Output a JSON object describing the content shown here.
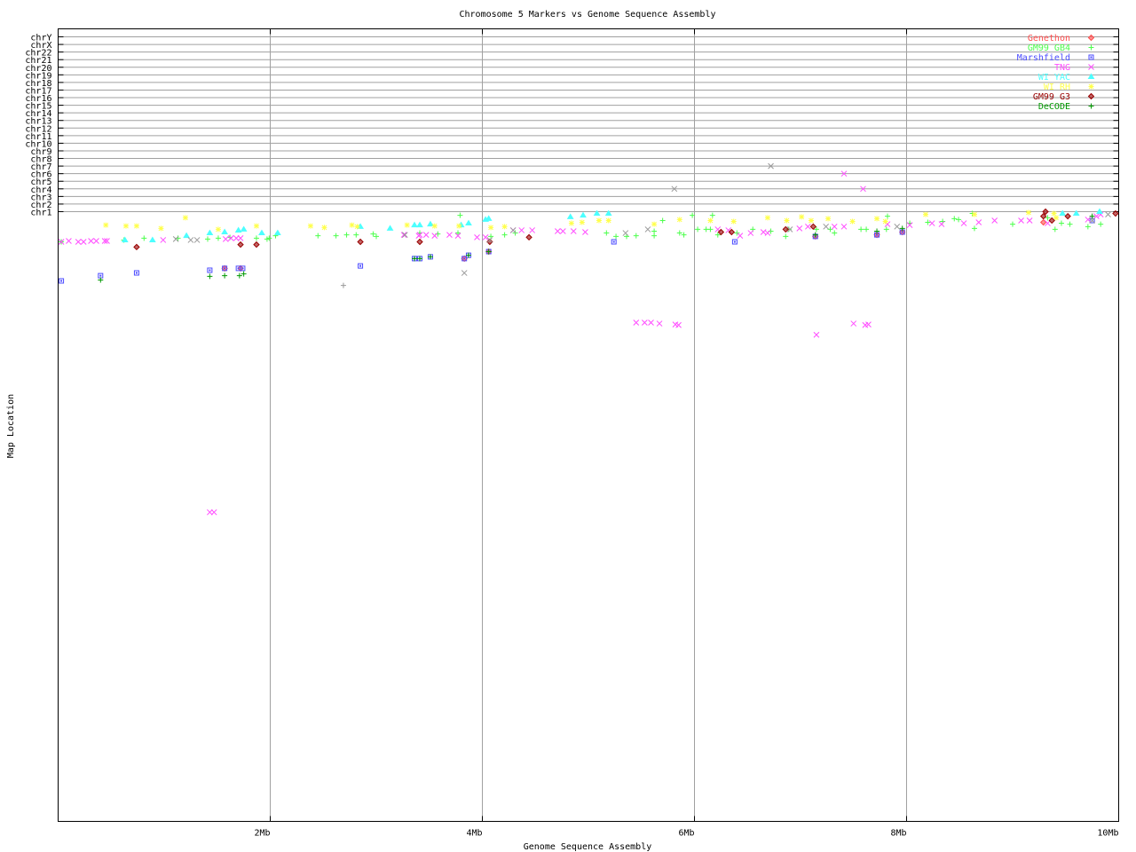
{
  "chart_data": {
    "type": "scatter",
    "title": "Chromosome 5 Markers vs Genome Sequence Assembly",
    "xlabel": "Genome Sequence Assembly",
    "ylabel": "Map Location",
    "xlim": [
      0,
      10
    ],
    "x_unit": "Mb",
    "x_ticks": [
      {
        "value": 2,
        "label": "2Mb"
      },
      {
        "value": 4,
        "label": "4Mb"
      },
      {
        "value": 6,
        "label": "6Mb"
      },
      {
        "value": 8,
        "label": "8Mb"
      },
      {
        "value": 10,
        "label": "10Mb"
      }
    ],
    "y_chromosome_labels": [
      "chrY",
      "chrX",
      "chr22",
      "chr21",
      "chr20",
      "chr19",
      "chr18",
      "chr17",
      "chr16",
      "chr15",
      "chr14",
      "chr13",
      "chr12",
      "chr11",
      "chr10",
      "chr9",
      "chr8",
      "chr7",
      "chr6",
      "chr5",
      "chr4",
      "chr3",
      "chr2",
      "chr1"
    ],
    "ylim_map_location": [
      0,
      200
    ],
    "grid": true,
    "legend_placement": "top-right",
    "series": [
      {
        "name": "Genethon",
        "color": "#ff4c4c",
        "marker": "diamond",
        "points": [
          [
            1.57,
            18.6
          ],
          [
            1.72,
            18.6
          ],
          [
            3.83,
            15.4
          ],
          [
            4.06,
            13.1
          ],
          [
            7.14,
            8.1
          ],
          [
            7.72,
            7.6
          ],
          [
            7.96,
            6.7
          ],
          [
            9.29,
            3.5
          ]
        ]
      },
      {
        "name": "GM99 GB4",
        "color": "#4cff4c",
        "marker": "plus",
        "points": [
          [
            0.03,
            9.9
          ],
          [
            0.62,
            9.3
          ],
          [
            0.81,
            8.7
          ],
          [
            1.13,
            8.7
          ],
          [
            1.41,
            9.0
          ],
          [
            1.51,
            8.7
          ],
          [
            1.62,
            8.4
          ],
          [
            1.87,
            8.7
          ],
          [
            1.97,
            9.0
          ],
          [
            1.99,
            8.7
          ],
          [
            2.05,
            7.9
          ],
          [
            2.45,
            7.9
          ],
          [
            2.62,
            7.9
          ],
          [
            2.72,
            7.6
          ],
          [
            2.81,
            7.6
          ],
          [
            2.97,
            7.3
          ],
          [
            3.0,
            8.1
          ],
          [
            3.41,
            7.0
          ],
          [
            3.58,
            7.3
          ],
          [
            3.77,
            7.0
          ],
          [
            3.79,
            1.2
          ],
          [
            4.08,
            8.1
          ],
          [
            4.21,
            7.6
          ],
          [
            4.31,
            7.0
          ],
          [
            5.17,
            7.0
          ],
          [
            5.26,
            8.1
          ],
          [
            5.36,
            8.1
          ],
          [
            5.45,
            7.9
          ],
          [
            5.62,
            6.4
          ],
          [
            5.62,
            7.9
          ],
          [
            5.7,
            2.9
          ],
          [
            5.86,
            7.0
          ],
          [
            5.9,
            7.6
          ],
          [
            5.98,
            1.2
          ],
          [
            6.03,
            5.8
          ],
          [
            6.11,
            5.8
          ],
          [
            6.15,
            5.8
          ],
          [
            6.17,
            1.2
          ],
          [
            6.22,
            7.6
          ],
          [
            6.4,
            7.0
          ],
          [
            6.55,
            5.8
          ],
          [
            6.72,
            6.4
          ],
          [
            6.86,
            8.1
          ],
          [
            6.89,
            5.8
          ],
          [
            7.15,
            5.8
          ],
          [
            7.28,
            5.8
          ],
          [
            7.32,
            7.0
          ],
          [
            7.57,
            5.8
          ],
          [
            7.62,
            5.8
          ],
          [
            7.81,
            5.8
          ],
          [
            7.82,
            1.5
          ],
          [
            8.03,
            3.8
          ],
          [
            8.2,
            3.5
          ],
          [
            8.34,
            3.2
          ],
          [
            8.45,
            2.3
          ],
          [
            8.49,
            2.6
          ],
          [
            8.64,
            5.5
          ],
          [
            8.62,
            0.6
          ],
          [
            9.0,
            4.1
          ],
          [
            9.33,
            2.0
          ],
          [
            9.4,
            5.8
          ],
          [
            9.46,
            3.8
          ],
          [
            9.54,
            4.1
          ],
          [
            9.71,
            4.9
          ],
          [
            9.83,
            4.1
          ]
        ]
      },
      {
        "name": "Marshfield",
        "color": "#4c4cff",
        "marker": "box",
        "points": [
          [
            0.03,
            22.7
          ],
          [
            0.4,
            21.0
          ],
          [
            0.74,
            20.1
          ],
          [
            1.43,
            19.2
          ],
          [
            1.57,
            18.6
          ],
          [
            1.7,
            18.6
          ],
          [
            1.74,
            18.6
          ],
          [
            2.85,
            17.8
          ],
          [
            3.36,
            15.4
          ],
          [
            3.41,
            15.4
          ],
          [
            3.51,
            14.8
          ],
          [
            3.83,
            15.4
          ],
          [
            3.87,
            14.3
          ],
          [
            4.06,
            13.1
          ],
          [
            5.24,
            9.9
          ],
          [
            6.38,
            9.9
          ],
          [
            7.14,
            8.1
          ],
          [
            7.72,
            7.6
          ],
          [
            7.96,
            6.7
          ],
          [
            9.75,
            2.9
          ]
        ]
      },
      {
        "name": "TNG",
        "color": "#ff4cff",
        "marker": "x",
        "points": [
          [
            0.03,
            9.9
          ],
          [
            0.1,
            9.6
          ],
          [
            0.19,
            9.9
          ],
          [
            0.24,
            9.9
          ],
          [
            0.31,
            9.6
          ],
          [
            0.36,
            9.6
          ],
          [
            0.44,
            9.6
          ],
          [
            0.46,
            9.6
          ],
          [
            0.99,
            9.3
          ],
          [
            1.58,
            9.0
          ],
          [
            1.63,
            8.7
          ],
          [
            1.68,
            8.7
          ],
          [
            1.72,
            8.7
          ],
          [
            3.26,
            7.6
          ],
          [
            3.4,
            7.9
          ],
          [
            3.41,
            7.6
          ],
          [
            3.47,
            7.6
          ],
          [
            3.55,
            7.9
          ],
          [
            3.69,
            7.6
          ],
          [
            3.77,
            7.9
          ],
          [
            3.95,
            8.4
          ],
          [
            4.03,
            8.4
          ],
          [
            4.29,
            6.1
          ],
          [
            4.37,
            6.1
          ],
          [
            4.47,
            6.1
          ],
          [
            4.71,
            6.4
          ],
          [
            4.76,
            6.4
          ],
          [
            4.86,
            6.4
          ],
          [
            4.97,
            6.7
          ],
          [
            5.45,
            36.4
          ],
          [
            5.53,
            36.4
          ],
          [
            5.59,
            36.4
          ],
          [
            5.67,
            36.7
          ],
          [
            5.82,
            37.0
          ],
          [
            5.85,
            37.2
          ],
          [
            6.22,
            5.8
          ],
          [
            6.32,
            6.1
          ],
          [
            6.43,
            7.9
          ],
          [
            6.53,
            7.0
          ],
          [
            6.65,
            6.7
          ],
          [
            6.69,
            7.0
          ],
          [
            6.99,
            5.5
          ],
          [
            7.07,
            4.9
          ],
          [
            7.32,
            4.9
          ],
          [
            7.41,
            4.9
          ],
          [
            7.82,
            4.1
          ],
          [
            8.03,
            4.4
          ],
          [
            8.24,
            3.8
          ],
          [
            8.33,
            4.1
          ],
          [
            8.54,
            3.8
          ],
          [
            8.68,
            3.5
          ],
          [
            8.83,
            2.9
          ],
          [
            9.08,
            2.9
          ],
          [
            9.16,
            2.9
          ],
          [
            9.33,
            3.8
          ],
          [
            9.71,
            2.6
          ],
          [
            9.79,
            1.5
          ],
          [
            9.83,
            0.9
          ],
          [
            7.15,
            40.4
          ],
          [
            7.5,
            36.7
          ],
          [
            7.61,
            37.2
          ],
          [
            7.64,
            37.0
          ],
          [
            1.43,
            98.6
          ],
          [
            1.47,
            98.6
          ],
          [
            7.41,
            "chr6"
          ],
          [
            7.59,
            "chr4"
          ]
        ]
      },
      {
        "name": "WI YAC",
        "color": "#4cffff",
        "marker": "triangle",
        "points": [
          [
            0.63,
            9.3
          ],
          [
            0.89,
            9.3
          ],
          [
            1.21,
            7.9
          ],
          [
            1.43,
            7.0
          ],
          [
            1.57,
            6.7
          ],
          [
            1.7,
            6.1
          ],
          [
            1.75,
            5.8
          ],
          [
            1.92,
            7.0
          ],
          [
            2.07,
            7.0
          ],
          [
            2.85,
            4.9
          ],
          [
            3.13,
            5.5
          ],
          [
            3.36,
            4.4
          ],
          [
            3.41,
            4.4
          ],
          [
            3.51,
            4.1
          ],
          [
            3.8,
            4.4
          ],
          [
            3.87,
            3.8
          ],
          [
            4.03,
            2.6
          ],
          [
            4.06,
            2.3
          ],
          [
            4.83,
            1.7
          ],
          [
            4.95,
            1.2
          ],
          [
            5.08,
            0.6
          ],
          [
            5.19,
            0.6
          ],
          [
            9.47,
            0.6
          ],
          [
            9.6,
            0.6
          ],
          [
            9.82,
            0
          ]
        ]
      },
      {
        "name": "WI RH",
        "color": "#ffff4c",
        "marker": "star",
        "points": [
          [
            0.45,
            4.4
          ],
          [
            0.64,
            4.7
          ],
          [
            0.74,
            4.7
          ],
          [
            0.97,
            5.5
          ],
          [
            1.2,
            2.0
          ],
          [
            1.51,
            5.8
          ],
          [
            1.87,
            4.7
          ],
          [
            2.38,
            4.7
          ],
          [
            2.51,
            5.2
          ],
          [
            2.77,
            4.4
          ],
          [
            2.82,
            4.9
          ],
          [
            3.29,
            4.4
          ],
          [
            3.55,
            4.7
          ],
          [
            3.78,
            4.7
          ],
          [
            4.08,
            5.2
          ],
          [
            4.21,
            4.9
          ],
          [
            4.84,
            3.8
          ],
          [
            4.94,
            3.5
          ],
          [
            5.1,
            2.9
          ],
          [
            5.19,
            2.9
          ],
          [
            5.62,
            4.1
          ],
          [
            5.86,
            2.6
          ],
          [
            6.15,
            2.9
          ],
          [
            6.37,
            3.2
          ],
          [
            6.69,
            2.0
          ],
          [
            6.87,
            2.9
          ],
          [
            7.01,
            1.7
          ],
          [
            7.1,
            2.9
          ],
          [
            7.26,
            2.3
          ],
          [
            7.49,
            3.2
          ],
          [
            7.72,
            2.3
          ],
          [
            7.8,
            3.2
          ],
          [
            8.18,
            0.9
          ],
          [
            8.64,
            0.9
          ],
          [
            9.15,
            0.3
          ],
          [
            9.39,
            0.6
          ],
          [
            9.41,
            2.0
          ]
        ]
      },
      {
        "name": "GM99 G3",
        "color": "#990000",
        "marker": "diamond",
        "points": [
          [
            0.74,
            11.6
          ],
          [
            1.72,
            10.8
          ],
          [
            1.87,
            10.8
          ],
          [
            2.85,
            9.9
          ],
          [
            3.41,
            9.9
          ],
          [
            4.07,
            9.9
          ],
          [
            4.44,
            8.4
          ],
          [
            6.25,
            6.7
          ],
          [
            6.35,
            6.7
          ],
          [
            6.86,
            5.8
          ],
          [
            7.12,
            4.9
          ],
          [
            9.37,
            2.9
          ],
          [
            9.52,
            1.5
          ],
          [
            9.29,
            1.5
          ],
          [
            9.31,
            0
          ],
          [
            9.97,
            0.6
          ]
        ]
      },
      {
        "name": "DeCODE",
        "color": "#009900",
        "marker": "plus",
        "points": [
          [
            0.4,
            22.4
          ],
          [
            1.43,
            21.2
          ],
          [
            1.57,
            21.0
          ],
          [
            1.71,
            21.0
          ],
          [
            1.75,
            20.4
          ],
          [
            3.36,
            15.4
          ],
          [
            3.41,
            15.4
          ],
          [
            3.51,
            14.8
          ],
          [
            3.87,
            14.3
          ],
          [
            4.06,
            13.1
          ],
          [
            7.14,
            7.6
          ],
          [
            7.72,
            6.4
          ],
          [
            7.96,
            5.5
          ],
          [
            9.75,
            1.5
          ]
        ]
      },
      {
        "color": "#999999",
        "marker": "x",
        "points": [
          [
            1.11,
            9.0
          ],
          [
            1.25,
            9.3
          ],
          [
            1.31,
            9.3
          ],
          [
            3.27,
            7.6
          ],
          [
            4.29,
            6.1
          ],
          [
            3.83,
            20.1
          ],
          [
            4.07,
            9.3
          ],
          [
            5.35,
            7.0
          ],
          [
            5.56,
            5.8
          ],
          [
            6.9,
            5.8
          ],
          [
            7.24,
            4.9
          ],
          [
            7.91,
            4.9
          ],
          [
            9.75,
            2.9
          ],
          [
            9.9,
            0.9
          ],
          [
            5.81,
            "chr4"
          ],
          [
            6.72,
            "chr7"
          ]
        ]
      },
      {
        "color": "#999999",
        "marker": "plus",
        "points": [
          [
            2.69,
            24.2
          ]
        ]
      }
    ]
  }
}
